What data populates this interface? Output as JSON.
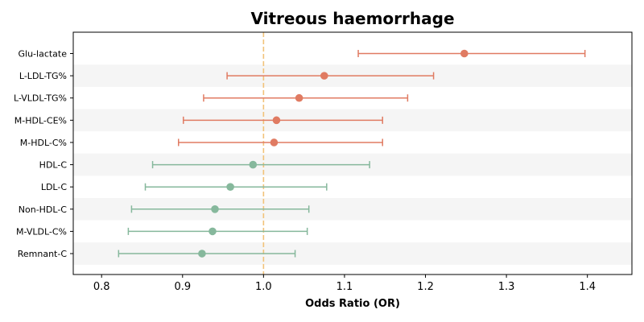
{
  "chart_data": {
    "type": "forest",
    "title": "Vitreous haemorrhage",
    "xlabel": "Odds Ratio (OR)",
    "xlim": [
      0.765,
      1.455
    ],
    "xticks": [
      0.8,
      0.9,
      1.0,
      1.1,
      1.2,
      1.3,
      1.4
    ],
    "xtick_labels": [
      "0.8",
      "0.9",
      "1.0",
      "1.1",
      "1.2",
      "1.3",
      "1.4"
    ],
    "reference_line": 1.0,
    "colors": {
      "risk": "#e07b62",
      "protective": "#86b89c",
      "reference": "#f2c37a",
      "stripe": "#f5f5f5"
    },
    "rows": [
      {
        "label": "Glu-lactate",
        "or": 1.248,
        "lower": 1.117,
        "upper": 1.397,
        "group": "risk"
      },
      {
        "label": "L-LDL-TG%",
        "or": 1.075,
        "lower": 0.955,
        "upper": 1.21,
        "group": "risk"
      },
      {
        "label": "L-VLDL-TG%",
        "or": 1.044,
        "lower": 0.926,
        "upper": 1.178,
        "group": "risk"
      },
      {
        "label": "M-HDL-CE%",
        "or": 1.016,
        "lower": 0.901,
        "upper": 1.147,
        "group": "risk"
      },
      {
        "label": "M-HDL-C%",
        "or": 1.013,
        "lower": 0.895,
        "upper": 1.147,
        "group": "risk"
      },
      {
        "label": "HDL-C",
        "or": 0.987,
        "lower": 0.863,
        "upper": 1.131,
        "group": "protective"
      },
      {
        "label": "LDL-C",
        "or": 0.959,
        "lower": 0.854,
        "upper": 1.078,
        "group": "protective"
      },
      {
        "label": "Non-HDL-C",
        "or": 0.94,
        "lower": 0.837,
        "upper": 1.056,
        "group": "protective"
      },
      {
        "label": "M-VLDL-C%",
        "or": 0.937,
        "lower": 0.833,
        "upper": 1.054,
        "group": "protective"
      },
      {
        "label": "Remnant-C",
        "or": 0.924,
        "lower": 0.821,
        "upper": 1.039,
        "group": "protective"
      }
    ]
  }
}
